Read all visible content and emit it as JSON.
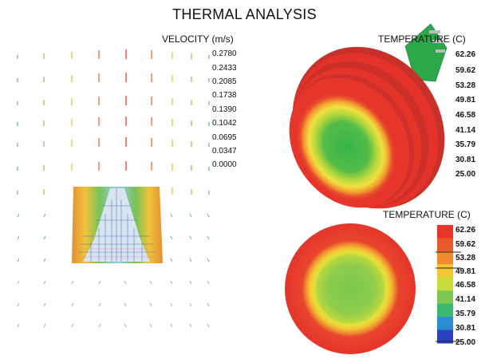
{
  "title": "THERMAL ANALYSIS",
  "velocity": {
    "title": "VELOCITY (m/s)",
    "labels": [
      "0.2780",
      "0.2433",
      "0.2085",
      "0.1738",
      "0.1390",
      "0.1042",
      "0.0695",
      "0.0347",
      "0.0000"
    ]
  },
  "temperature_3d": {
    "title": "TEMPERATURE (C)",
    "labels": [
      "62.26",
      "59.62",
      "53.28",
      "49.81",
      "46.58",
      "41.14",
      "35.79",
      "30.81",
      "25.00"
    ]
  },
  "temperature_top": {
    "title": "TEMPERATURE (C)",
    "labels": [
      "62.26",
      "59.62",
      "53.28",
      "49.81",
      "46.58",
      "41.14",
      "35.79",
      "30.81",
      "25.00"
    ],
    "colorbar": [
      "#e8352c",
      "#e85a2c",
      "#f08a2c",
      "#f4c834",
      "#c8dc3c",
      "#7cc850",
      "#3cb870",
      "#2c8cd0",
      "#2c40c0"
    ]
  },
  "colors": {
    "hot": "#e4322a",
    "warm": "#f0a030",
    "mid": "#d8e040",
    "cool": "#38b44a",
    "connector": "#2ca84a"
  }
}
